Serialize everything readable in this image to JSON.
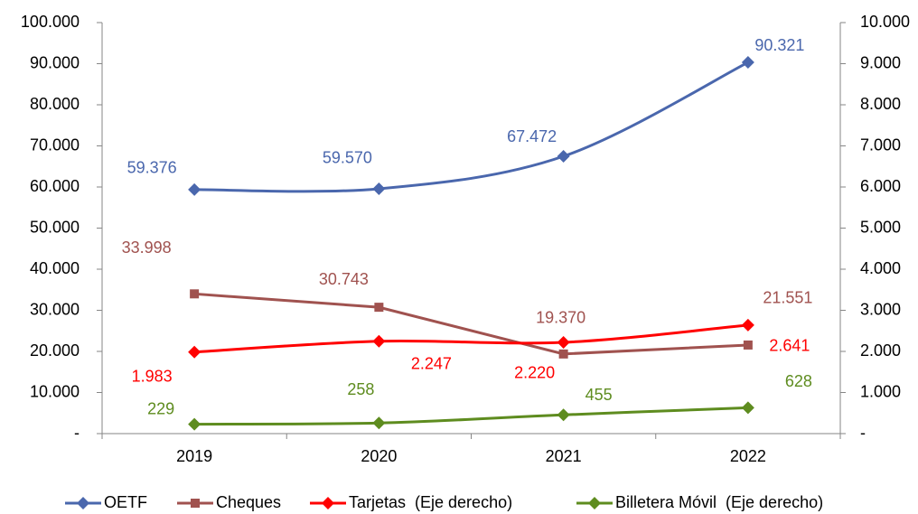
{
  "chart_data": {
    "type": "line",
    "categories": [
      "2019",
      "2020",
      "2021",
      "2022"
    ],
    "ylim": [
      0,
      100000
    ],
    "yticks": [
      {
        "value": 0,
        "label": "-"
      },
      {
        "value": 10000,
        "label": "10.000"
      },
      {
        "value": 20000,
        "label": "20.000"
      },
      {
        "value": 30000,
        "label": "30.000"
      },
      {
        "value": 40000,
        "label": "40.000"
      },
      {
        "value": 50000,
        "label": "50.000"
      },
      {
        "value": 60000,
        "label": "60.000"
      },
      {
        "value": 70000,
        "label": "70.000"
      },
      {
        "value": 80000,
        "label": "80.000"
      },
      {
        "value": 90000,
        "label": "90.000"
      },
      {
        "value": 100000,
        "label": "100.000"
      }
    ],
    "y2lim": [
      0,
      10000
    ],
    "y2ticks": [
      {
        "value": 0,
        "label": "-"
      },
      {
        "value": 1000,
        "label": "1.000"
      },
      {
        "value": 2000,
        "label": "2.000"
      },
      {
        "value": 3000,
        "label": "3.000"
      },
      {
        "value": 4000,
        "label": "4.000"
      },
      {
        "value": 5000,
        "label": "5.000"
      },
      {
        "value": 6000,
        "label": "6.000"
      },
      {
        "value": 7000,
        "label": "7.000"
      },
      {
        "value": 8000,
        "label": "8.000"
      },
      {
        "value": 9000,
        "label": "9.000"
      },
      {
        "value": 10000,
        "label": "10.000"
      }
    ],
    "legend": "bottom",
    "series": [
      {
        "name": "OETF",
        "color": "#4a67ad",
        "marker": "diamond",
        "smooth": true,
        "values": [
          59376,
          59570,
          67472,
          90321
        ],
        "value_labels": [
          "59.376",
          "59.570",
          "67.472",
          "90.321"
        ]
      },
      {
        "name": "Cheques",
        "color": "#a0524f",
        "marker": "square",
        "smooth": false,
        "values": [
          33998,
          30743,
          19370,
          21551
        ],
        "value_labels": [
          "33.998",
          "30.743",
          "19.370",
          "21.551"
        ]
      },
      {
        "name": "Tarjetas  (Eje derecho)",
        "color": "#ff0000",
        "marker": "diamond",
        "smooth": true,
        "axis": "y2",
        "values": [
          1983,
          2247,
          2220,
          2641
        ],
        "value_labels": [
          "1.983",
          "2.247",
          "2.220",
          "2.641"
        ]
      },
      {
        "name": "Billetera Móvil  (Eje derecho)",
        "color": "#5e8c1f",
        "marker": "diamond",
        "smooth": true,
        "axis": "y2",
        "values": [
          229,
          258,
          455,
          628
        ],
        "value_labels": [
          "229",
          "258",
          "455",
          "628"
        ]
      }
    ]
  }
}
